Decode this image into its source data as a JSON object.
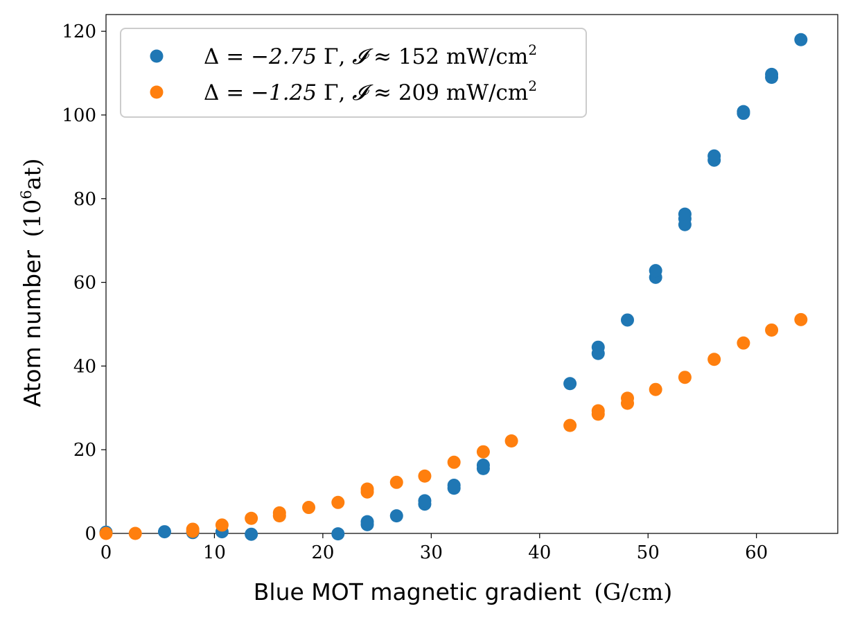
{
  "chart_data": {
    "type": "scatter",
    "xlabel": "Blue MOT magnetic gradient",
    "xlabel_unit": "(G/cm)",
    "ylabel": "Atom number",
    "ylabel_unit_prefix": "(10",
    "ylabel_unit_exp": "6",
    "ylabel_unit_suffix": "at)",
    "xlim": [
      0,
      67.5
    ],
    "ylim": [
      0,
      124
    ],
    "xticks": [
      0,
      10,
      20,
      30,
      40,
      50,
      60
    ],
    "yticks": [
      0,
      20,
      40,
      60,
      80,
      100,
      120
    ],
    "grid": false,
    "legend_position": "top-left",
    "series": [
      {
        "name": "Δ = −2.75 Γ, 𝓘 ≈ 152 mW/cm²",
        "legend": {
          "delta": "Δ",
          "eq": " = −2.75 ",
          "gamma": "Γ",
          "sep": ", ",
          "i": "𝓘",
          "approx": " ≈ 152 mW/cm",
          "sup": "2"
        },
        "color": "#1f77b4",
        "points": [
          [
            0,
            0.3
          ],
          [
            5.4,
            0.4
          ],
          [
            8.0,
            0.2
          ],
          [
            10.7,
            0.4
          ],
          [
            13.4,
            -0.2
          ],
          [
            21.4,
            -0.1
          ],
          [
            24.1,
            2.1
          ],
          [
            24.1,
            2.8
          ],
          [
            26.8,
            4.2
          ],
          [
            29.4,
            7.0
          ],
          [
            29.4,
            7.8
          ],
          [
            32.1,
            10.8
          ],
          [
            32.1,
            11.5
          ],
          [
            34.8,
            15.5
          ],
          [
            34.8,
            16.3
          ],
          [
            42.8,
            35.8
          ],
          [
            45.4,
            43.0
          ],
          [
            45.4,
            44.5
          ],
          [
            48.1,
            51.0
          ],
          [
            50.7,
            61.2
          ],
          [
            50.7,
            62.8
          ],
          [
            53.4,
            73.8
          ],
          [
            53.4,
            75.2
          ],
          [
            53.4,
            76.3
          ],
          [
            56.1,
            89.2
          ],
          [
            56.1,
            90.2
          ],
          [
            58.8,
            100.4
          ],
          [
            58.8,
            100.8
          ],
          [
            61.4,
            109.0
          ],
          [
            61.4,
            109.7
          ],
          [
            64.1,
            118.0
          ]
        ]
      },
      {
        "name": "Δ = −1.25 Γ, 𝓘 ≈ 209 mW/cm²",
        "legend": {
          "delta": "Δ",
          "eq": " = −1.25 ",
          "gamma": "Γ",
          "sep": ", ",
          "i": "𝓘",
          "approx": " ≈ 209 mW/cm",
          "sup": "2"
        },
        "color": "#ff7f0e",
        "points": [
          [
            0,
            0.0
          ],
          [
            2.7,
            0.0
          ],
          [
            8.0,
            0.5
          ],
          [
            8.0,
            1.0
          ],
          [
            10.7,
            2.0
          ],
          [
            13.4,
            3.6
          ],
          [
            16.0,
            4.2
          ],
          [
            16.0,
            4.9
          ],
          [
            18.7,
            6.2
          ],
          [
            21.4,
            7.4
          ],
          [
            24.1,
            9.9
          ],
          [
            24.1,
            10.6
          ],
          [
            26.8,
            12.2
          ],
          [
            29.4,
            13.7
          ],
          [
            32.1,
            17.0
          ],
          [
            34.8,
            19.5
          ],
          [
            37.4,
            22.1
          ],
          [
            42.8,
            25.8
          ],
          [
            45.4,
            28.5
          ],
          [
            45.4,
            29.3
          ],
          [
            48.1,
            31.1
          ],
          [
            48.1,
            32.3
          ],
          [
            50.7,
            34.4
          ],
          [
            53.4,
            37.3
          ],
          [
            56.1,
            41.6
          ],
          [
            58.8,
            45.5
          ],
          [
            61.4,
            48.6
          ],
          [
            64.1,
            51.1
          ]
        ]
      }
    ]
  }
}
